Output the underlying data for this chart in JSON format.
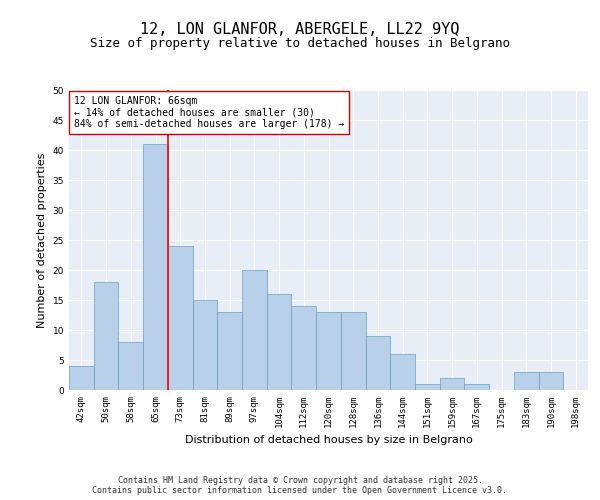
{
  "title": "12, LON GLANFOR, ABERGELE, LL22 9YQ",
  "subtitle": "Size of property relative to detached houses in Belgrano",
  "xlabel": "Distribution of detached houses by size in Belgrano",
  "ylabel": "Number of detached properties",
  "categories": [
    "42sqm",
    "50sqm",
    "58sqm",
    "65sqm",
    "73sqm",
    "81sqm",
    "89sqm",
    "97sqm",
    "104sqm",
    "112sqm",
    "120sqm",
    "128sqm",
    "136sqm",
    "144sqm",
    "151sqm",
    "159sqm",
    "167sqm",
    "175sqm",
    "183sqm",
    "190sqm",
    "198sqm"
  ],
  "values": [
    4,
    18,
    8,
    41,
    24,
    15,
    13,
    20,
    16,
    14,
    13,
    13,
    9,
    6,
    1,
    2,
    1,
    0,
    3,
    3,
    0
  ],
  "bar_color": "#b8d0ea",
  "bar_edge_color": "#6a9ec0",
  "red_line_index": 3,
  "annotation_text": "12 LON GLANFOR: 66sqm\n← 14% of detached houses are smaller (30)\n84% of semi-detached houses are larger (178) →",
  "annotation_box_color": "#ffffff",
  "annotation_box_edge": "#cc0000",
  "ylim": [
    0,
    50
  ],
  "yticks": [
    0,
    5,
    10,
    15,
    20,
    25,
    30,
    35,
    40,
    45,
    50
  ],
  "footer_text": "Contains HM Land Registry data © Crown copyright and database right 2025.\nContains public sector information licensed under the Open Government Licence v3.0.",
  "background_color": "#e8eef8",
  "grid_color": "#ffffff",
  "title_fontsize": 11,
  "subtitle_fontsize": 9,
  "axis_label_fontsize": 8,
  "tick_fontsize": 6.5,
  "annotation_fontsize": 7,
  "footer_fontsize": 6
}
